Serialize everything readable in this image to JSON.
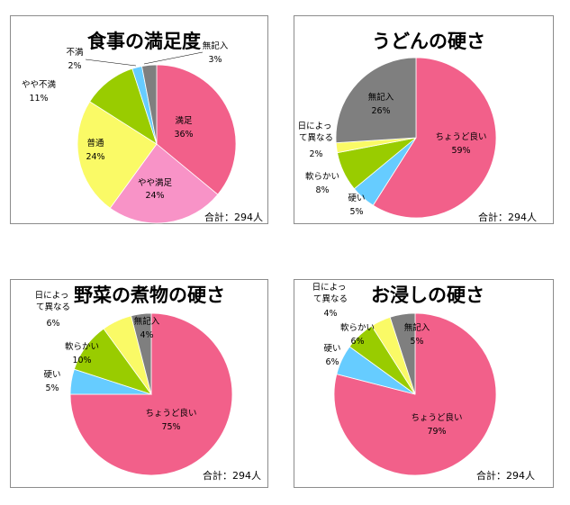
{
  "chart_data": [
    {
      "type": "pie",
      "title": "食事の満足度",
      "total_label": "合計：294人",
      "slices": [
        {
          "label": "満足",
          "pct_label": "36%",
          "value": 36,
          "color": "#f2608a"
        },
        {
          "label": "やや満足",
          "pct_label": "24%",
          "value": 24,
          "color": "#f893c7"
        },
        {
          "label": "普通",
          "pct_label": "24%",
          "value": 24,
          "color": "#fafa66"
        },
        {
          "label": "やや不満",
          "pct_label": "11%",
          "value": 11,
          "color": "#99cc00"
        },
        {
          "label": "不満",
          "pct_label": "2%",
          "value": 2,
          "color": "#66ccff"
        },
        {
          "label": "無記入",
          "pct_label": "3%",
          "value": 3,
          "color": "#7f7f7f"
        }
      ]
    },
    {
      "type": "pie",
      "title": "うどんの硬さ",
      "total_label": "合計：294人",
      "slices": [
        {
          "label": "ちょうど良い",
          "pct_label": "59%",
          "value": 59,
          "color": "#f2608a"
        },
        {
          "label": "硬い",
          "pct_label": "5%",
          "value": 5,
          "color": "#66ccff"
        },
        {
          "label": "軟らかい",
          "pct_label": "8%",
          "value": 8,
          "color": "#99cc00"
        },
        {
          "label": "日によって異なる",
          "pct_label": "2%",
          "value": 2,
          "color": "#fafa66"
        },
        {
          "label": "無記入",
          "pct_label": "26%",
          "value": 26,
          "color": "#7f7f7f"
        }
      ]
    },
    {
      "type": "pie",
      "title": "野菜の煮物の硬さ",
      "total_label": "合計：294人",
      "slices": [
        {
          "label": "ちょうど良い",
          "pct_label": "75%",
          "value": 75,
          "color": "#f2608a"
        },
        {
          "label": "硬い",
          "pct_label": "5%",
          "value": 5,
          "color": "#66ccff"
        },
        {
          "label": "軟らかい",
          "pct_label": "10%",
          "value": 10,
          "color": "#99cc00"
        },
        {
          "label": "日によって異なる",
          "pct_label": "6%",
          "value": 6,
          "color": "#fafa66"
        },
        {
          "label": "無記入",
          "pct_label": "4%",
          "value": 4,
          "color": "#7f7f7f"
        }
      ]
    },
    {
      "type": "pie",
      "title": "お浸しの硬さ",
      "total_label": "合計：294人",
      "slices": [
        {
          "label": "ちょうど良い",
          "pct_label": "79%",
          "value": 79,
          "color": "#f2608a"
        },
        {
          "label": "硬い",
          "pct_label": "6%",
          "value": 6,
          "color": "#66ccff"
        },
        {
          "label": "軟らかい",
          "pct_label": "6%",
          "value": 6,
          "color": "#99cc00"
        },
        {
          "label": "日によって異なる",
          "pct_label": "4%",
          "value": 4,
          "color": "#fafa66"
        },
        {
          "label": "無記入",
          "pct_label": "5%",
          "value": 5,
          "color": "#7f7f7f"
        }
      ]
    }
  ]
}
